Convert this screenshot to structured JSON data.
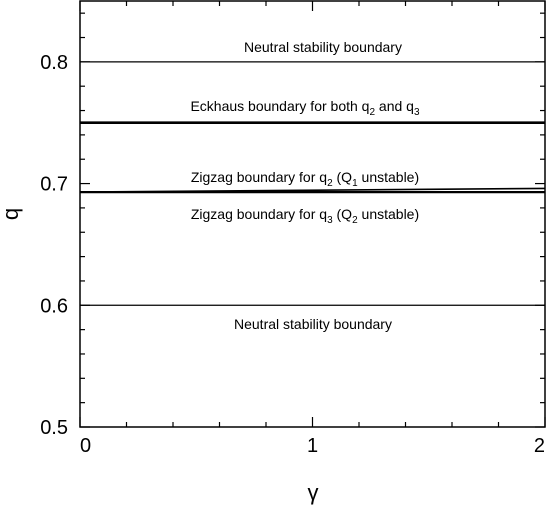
{
  "chart_data": {
    "type": "line",
    "xlabel": "γ",
    "ylabel": "q",
    "xlim": [
      0,
      2
    ],
    "ylim": [
      0.5,
      0.85
    ],
    "xticks": [
      0,
      1,
      2
    ],
    "yticks": [
      0.5,
      0.6,
      0.7,
      0.8
    ],
    "xminorticks": [
      0.2,
      0.4,
      0.6,
      0.8,
      1.2,
      1.4,
      1.6,
      1.8
    ],
    "yminorticks": [
      0.52,
      0.54,
      0.56,
      0.58,
      0.62,
      0.64,
      0.66,
      0.68,
      0.72,
      0.74,
      0.76,
      0.78,
      0.82,
      0.84
    ],
    "x": [
      0,
      2
    ],
    "series": [
      {
        "color": "#000000",
        "linewidth": 1.2,
        "values": [
          0.8,
          0.8
        ]
      },
      {
        "color": "#000000",
        "linewidth": 2.6,
        "values": [
          0.75,
          0.75
        ]
      },
      {
        "color": "#000000",
        "linewidth": 1.6,
        "values": [
          0.693,
          0.696
        ]
      },
      {
        "color": "#000000",
        "linewidth": 2.2,
        "values": [
          0.693,
          0.693
        ]
      },
      {
        "color": "#000000",
        "linewidth": 1.2,
        "values": [
          0.6,
          0.6
        ]
      }
    ],
    "annotations": [
      {
        "parts": [
          "Neutral stability boundary"
        ]
      },
      {
        "parts": [
          "Eckhaus boundary for both q",
          "2",
          " and q",
          "3"
        ]
      },
      {
        "parts": [
          "Zigzag boundary for q",
          "2",
          " (Q",
          "1",
          " unstable)"
        ]
      },
      {
        "parts": [
          "Zigzag boundary for q",
          "3",
          " (Q",
          "2",
          " unstable)"
        ]
      },
      {
        "parts": [
          "Neutral stability boundary"
        ]
      }
    ]
  }
}
